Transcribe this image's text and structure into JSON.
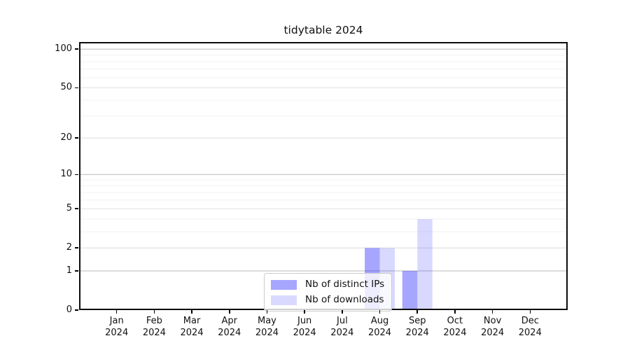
{
  "chart_data": {
    "type": "bar",
    "title": "tidytable 2024",
    "categories": [
      "Jan",
      "Feb",
      "Mar",
      "Apr",
      "May",
      "Jun",
      "Jul",
      "Aug",
      "Sep",
      "Oct",
      "Nov",
      "Dec"
    ],
    "category_year": "2024",
    "series": [
      {
        "name": "Nb of distinct IPs",
        "color": "#0000FF59",
        "values": [
          0,
          0,
          0,
          0,
          0,
          0,
          0,
          2,
          1,
          0,
          0,
          0
        ]
      },
      {
        "name": "Nb of downloads",
        "color": "#0000FF26",
        "values": [
          0,
          0,
          0,
          0,
          0,
          0,
          0,
          2,
          4,
          0,
          0,
          0
        ]
      }
    ],
    "xlabel": "",
    "ylabel": "",
    "yscale": "log1p",
    "ylim": [
      0,
      113.7
    ],
    "yticks_major": [
      0,
      1,
      2,
      5,
      10,
      20,
      50,
      100
    ],
    "yticks_power_of_ten": [
      1,
      10,
      100
    ],
    "yticks_minor": [
      3,
      4,
      6,
      7,
      8,
      9,
      30,
      40,
      60,
      70,
      80,
      90
    ],
    "grid": "on",
    "grid_color_power": "#c8c8c8",
    "grid_color_major": "#e3e3e3",
    "grid_color_minor": "#f1f1f1",
    "spine_color": "#000000",
    "legend_position": "lower-center"
  }
}
